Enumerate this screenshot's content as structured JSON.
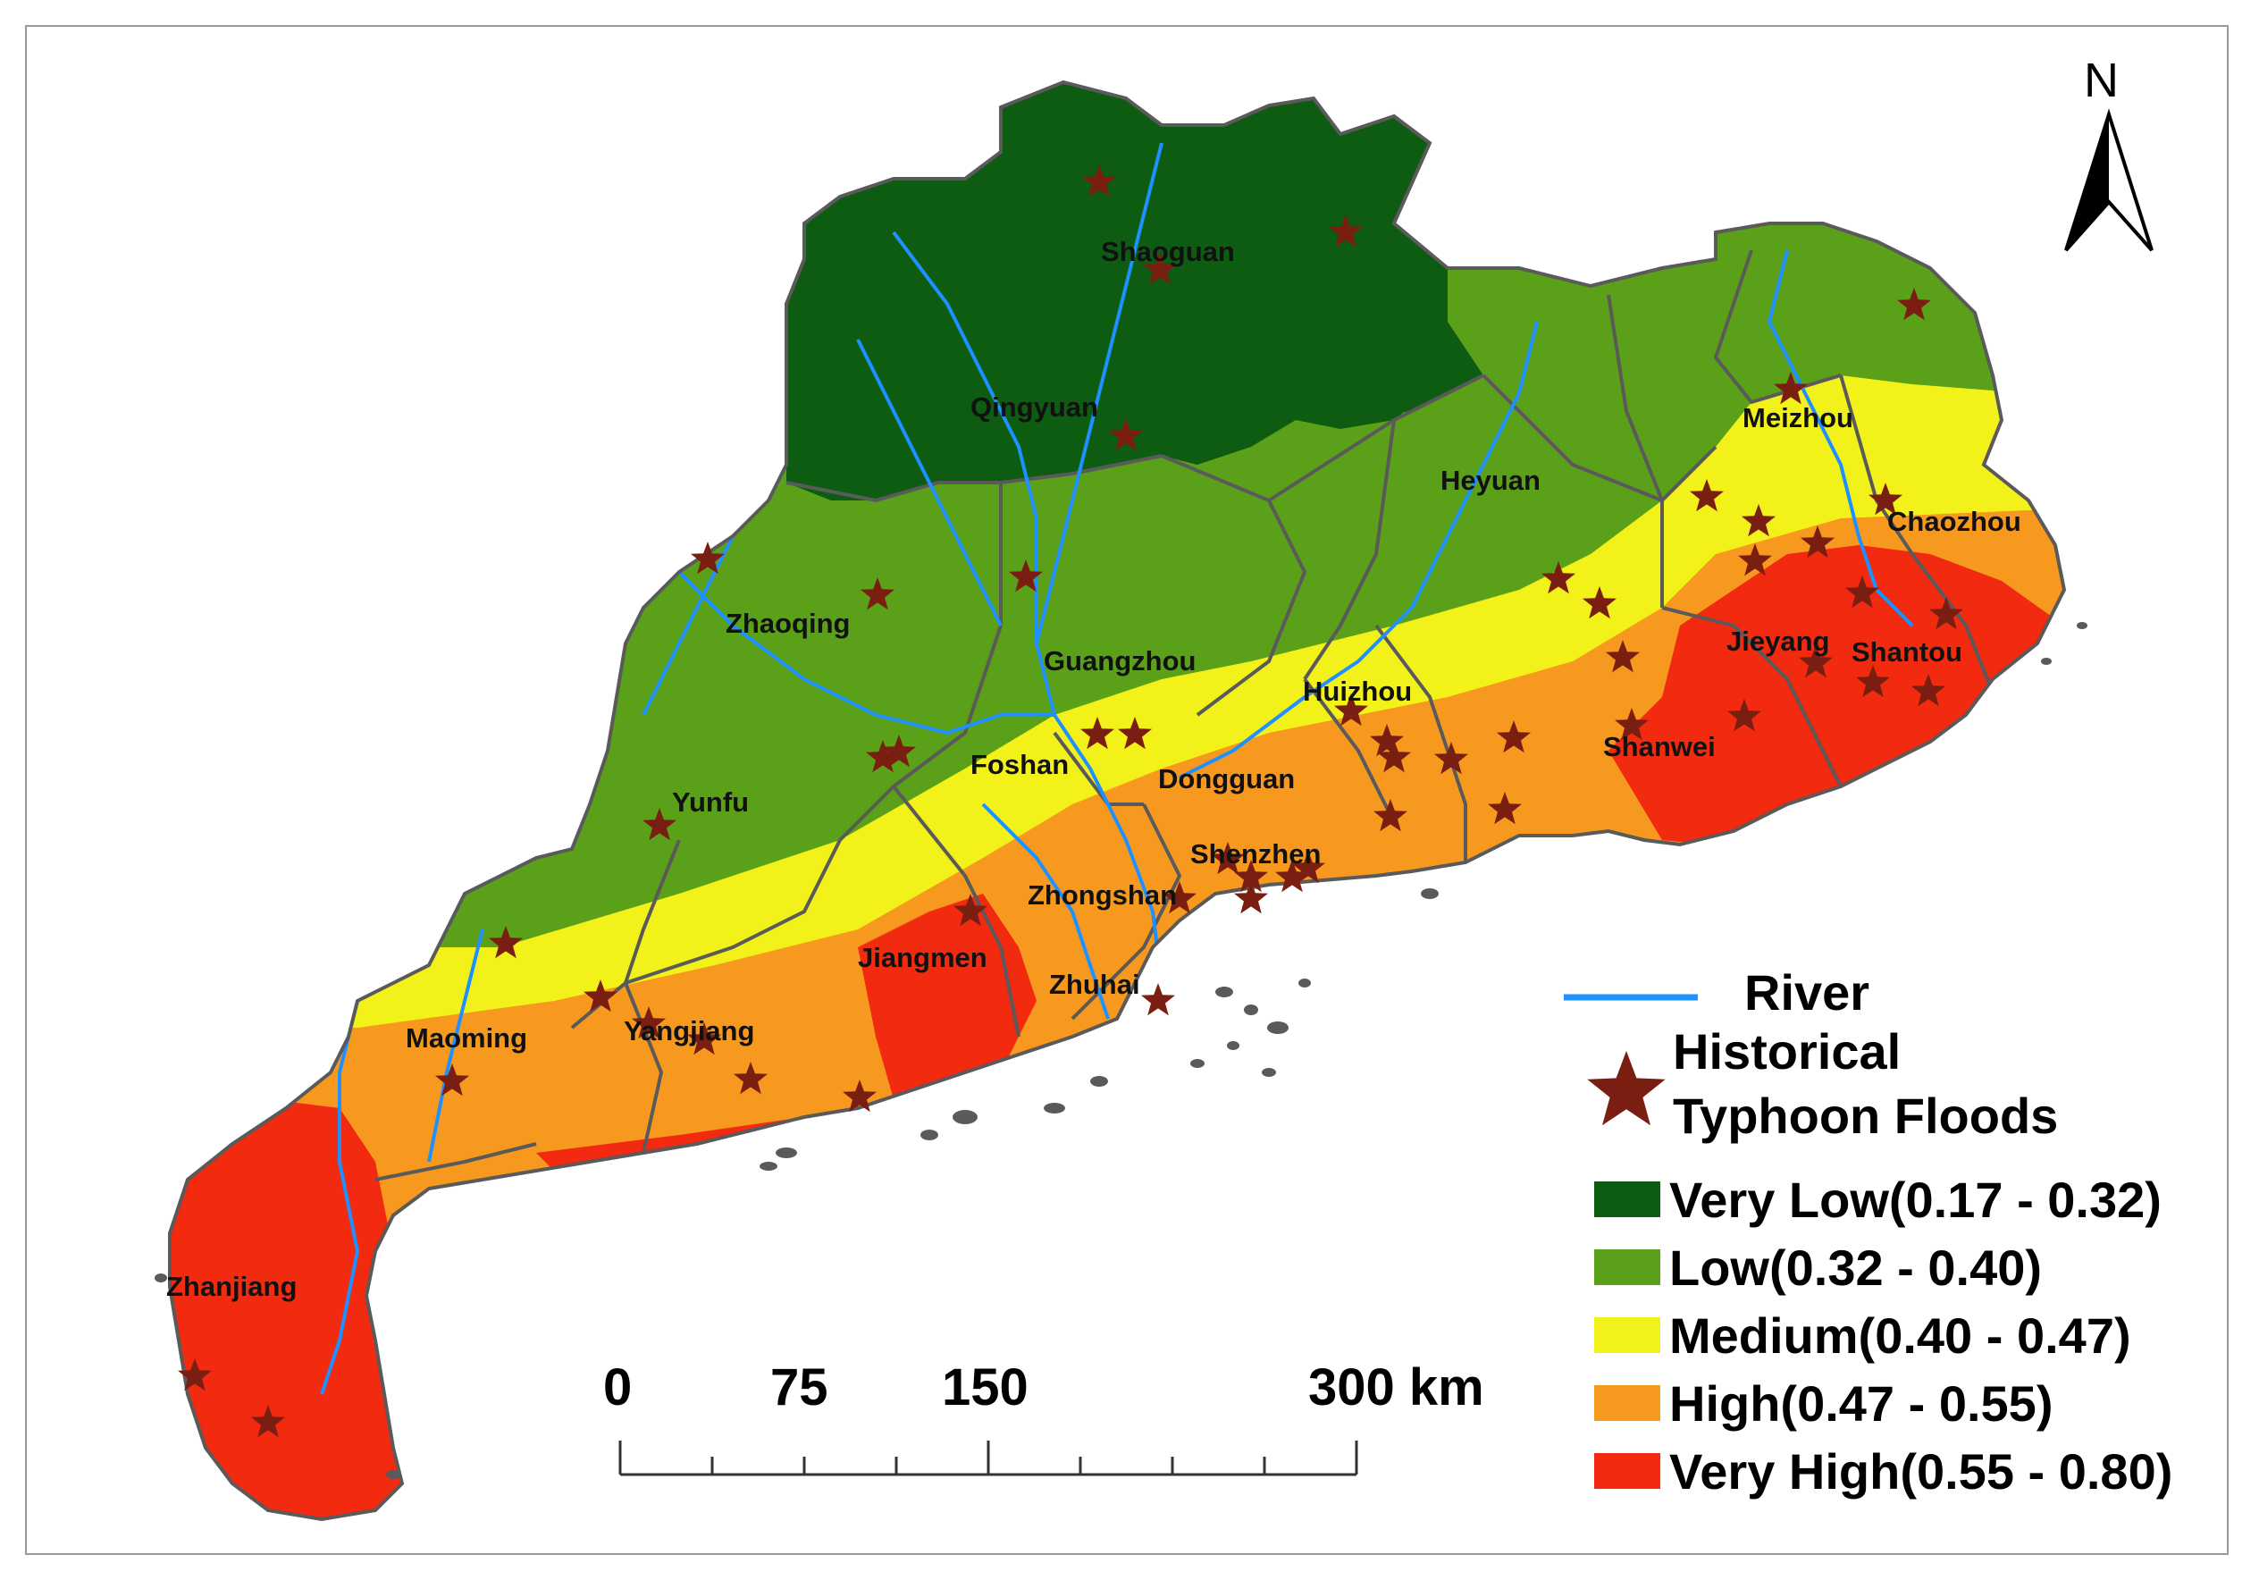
{
  "map": {
    "north_label": "N",
    "scale_labels": [
      "0",
      "75",
      "150",
      "300 km"
    ],
    "legend": {
      "river_label": "River",
      "floods_label_line1": "Historical",
      "floods_label_line2": "Typhoon Floods",
      "classes": [
        {
          "label": "Very Low(0.17 - 0.32)",
          "color": "#0e5c12"
        },
        {
          "label": "Low(0.32 - 0.40)",
          "color": "#5aa019"
        },
        {
          "label": "Medium(0.40 - 0.47)",
          "color": "#f2f21a"
        },
        {
          "label": "High(0.47 - 0.55)",
          "color": "#f7991e"
        },
        {
          "label": "Very High(0.55 - 0.80)",
          "color": "#f22a10"
        }
      ],
      "river_color": "#1e90ff",
      "star_color": "#7a1e12"
    },
    "cities": {
      "shaoguan": "Shaoguan",
      "qingyuan": "Qingyuan",
      "meizhou": "Meizhou",
      "heyuan": "Heyuan",
      "chaozhou": "Chaozhou",
      "zhaoqing": "Zhaoqing",
      "guangzhou": "Guangzhou",
      "huizhou": "Huizhou",
      "jieyang": "Jieyang",
      "shantou": "Shantou",
      "shanwei": "Shanwei",
      "foshan": "Foshan",
      "dongguan": "Dongguan",
      "yunfu": "Yunfu",
      "shenzhen": "Shenzhen",
      "zhongshan": "Zhongshan",
      "jiangmen": "Jiangmen",
      "zhuhai": "Zhuhai",
      "maoming": "Maoming",
      "yangjiang": "Yangjiang",
      "zhanjiang": "Zhanjiang"
    }
  }
}
